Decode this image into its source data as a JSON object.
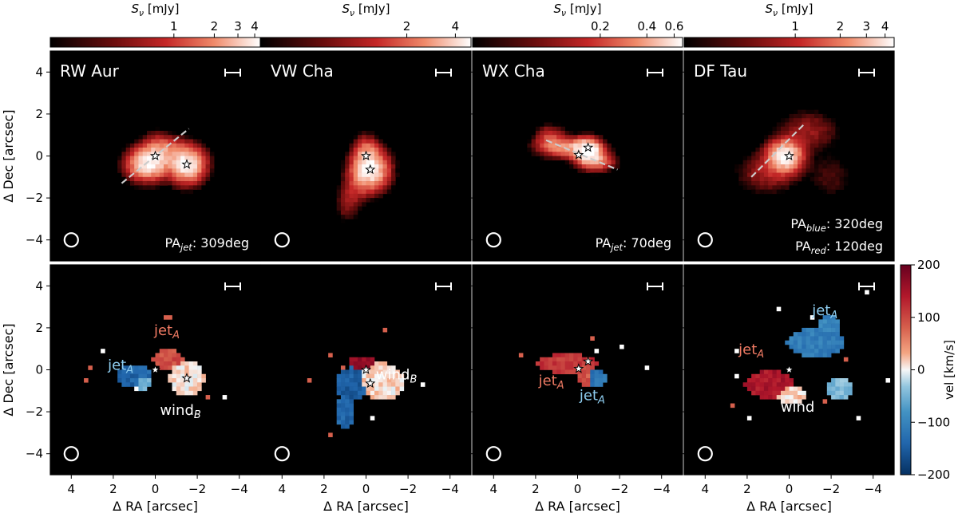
{
  "chart_data": {
    "type": "heatmap",
    "shared_axes": {
      "xlabel": "Δ RA [arcsec]",
      "ylabel": "Δ Dec [arcsec]",
      "xlim": [
        5,
        -5
      ],
      "ylim": [
        -5,
        5
      ],
      "xticks": [
        4,
        2,
        0,
        -2,
        -4
      ],
      "yticks": [
        4,
        2,
        0,
        -2,
        -4
      ],
      "xtick_labels": [
        "4",
        "2",
        "0",
        "−2",
        "−4"
      ],
      "ytick_labels": [
        "4",
        "2",
        "0",
        "−2",
        "−4"
      ]
    },
    "flux_colorbars": [
      {
        "label": "S_ν [mJy]",
        "tick_values": [
          1,
          2,
          3,
          4
        ],
        "tick_labels": [
          "1",
          "2",
          "3",
          "4"
        ],
        "vmin": 0.12,
        "vmax": 4.4
      },
      {
        "label": "S_ν [mJy]",
        "tick_values": [
          2,
          4
        ],
        "tick_labels": [
          "2",
          "4"
        ],
        "vmin": 0.25,
        "vmax": 5.0
      },
      {
        "label": "S_ν [mJy]",
        "tick_values": [
          0.2,
          0.4,
          0.6
        ],
        "tick_labels": [
          "0.2",
          "0.4",
          "0.6"
        ],
        "vmin": 0.03,
        "vmax": 0.68
      },
      {
        "label": "S_ν [mJy]",
        "tick_values": [
          1,
          2,
          3,
          4
        ],
        "tick_labels": [
          "1",
          "2",
          "3",
          "4"
        ],
        "vmin": 0.18,
        "vmax": 4.6
      }
    ],
    "velocity_colorbar": {
      "label": "vel [km/s]",
      "vmin": -200,
      "vmax": 200,
      "tick_values": [
        200,
        100,
        0,
        -100,
        -200
      ],
      "tick_labels": [
        "200",
        "100",
        "0",
        "−100",
        "−200"
      ]
    },
    "panels": [
      {
        "name": "RW Aur",
        "beam_center": [
          4,
          -4
        ],
        "stars": [
          [
            0,
            0
          ],
          [
            -1.5,
            -0.4
          ]
        ],
        "jet_pa_label": "PA",
        "jet_pa_sub": "jet",
        "jet_pa_value": ": 309deg",
        "jet_line": [
          [
            1.6,
            -1.3
          ],
          [
            -1.6,
            1.3
          ]
        ],
        "flux_blobs": [
          {
            "x": 0.4,
            "y": -0.4,
            "sx": 0.55,
            "sy": 0.45,
            "amp": 3.6
          },
          {
            "x": -0.1,
            "y": 0.1,
            "sx": 0.45,
            "sy": 0.5,
            "amp": 2.0
          },
          {
            "x": -1.5,
            "y": -0.4,
            "sx": 0.5,
            "sy": 0.5,
            "amp": 4.4
          },
          {
            "x": -0.8,
            "y": 0.3,
            "sx": 0.4,
            "sy": 0.35,
            "amp": 0.9
          }
        ],
        "vel_regions": [
          {
            "x": 1.0,
            "y": -0.3,
            "rx": 0.75,
            "ry": 0.6,
            "v": -140
          },
          {
            "x": 0.6,
            "y": -0.6,
            "rx": 0.35,
            "ry": 0.35,
            "v": -60
          },
          {
            "x": -0.6,
            "y": 0.5,
            "rx": 0.75,
            "ry": 0.45,
            "v": 95
          },
          {
            "x": -1.5,
            "y": -0.4,
            "rx": 0.85,
            "ry": 0.85,
            "v": 10
          }
        ],
        "vel_labels": [
          {
            "text": "jet",
            "sub": "A",
            "x": 1.65,
            "y": 0.0,
            "color": "#8ecdf0"
          },
          {
            "text": "jet",
            "sub": "A",
            "x": -0.55,
            "y": 1.65,
            "color": "#ef7a63"
          },
          {
            "text": "wind",
            "sub": "B",
            "x": -1.2,
            "y": -2.15,
            "color": "#ffffff"
          }
        ]
      },
      {
        "name": "VW Cha",
        "beam_center": [
          4,
          -4
        ],
        "stars": [
          [
            0,
            0
          ],
          [
            -0.2,
            -0.65
          ]
        ],
        "flux_blobs": [
          {
            "x": -0.2,
            "y": -0.65,
            "sx": 0.55,
            "sy": 0.6,
            "amp": 5.0
          },
          {
            "x": 0.0,
            "y": 0.2,
            "sx": 0.35,
            "sy": 0.5,
            "amp": 1.6
          },
          {
            "x": 0.9,
            "y": -2.3,
            "sx": 0.35,
            "sy": 0.55,
            "amp": 0.8
          },
          {
            "x": 0.5,
            "y": -1.5,
            "sx": 0.4,
            "sy": 0.5,
            "amp": 0.8
          }
        ],
        "vel_regions": [
          {
            "x": 0.2,
            "y": 0.35,
            "rx": 0.65,
            "ry": 0.35,
            "v": 170
          },
          {
            "x": 0.7,
            "y": -0.7,
            "rx": 0.7,
            "ry": 0.8,
            "v": -150
          },
          {
            "x": 1.0,
            "y": -2.0,
            "rx": 0.45,
            "ry": 0.9,
            "v": -140
          },
          {
            "x": -0.75,
            "y": -0.55,
            "rx": 1.05,
            "ry": 0.9,
            "v": 12
          }
        ],
        "vel_labels": [
          {
            "text": "wind",
            "sub": "B",
            "x": -1.45,
            "y": -0.45,
            "color": "#ffffff"
          }
        ]
      },
      {
        "name": "WX Cha",
        "beam_center": [
          4,
          -4
        ],
        "stars": [
          [
            -0.5,
            0.4
          ],
          [
            -0.05,
            0.05
          ]
        ],
        "jet_pa_label": "PA",
        "jet_pa_sub": "jet",
        "jet_pa_value": ": 70deg",
        "jet_line": [
          [
            1.5,
            0.75
          ],
          [
            -1.9,
            -0.65
          ]
        ],
        "flux_blobs": [
          {
            "x": -0.5,
            "y": 0.25,
            "sx": 0.4,
            "sy": 0.35,
            "amp": 0.68
          },
          {
            "x": 0.5,
            "y": 0.4,
            "sx": 0.85,
            "sy": 0.3,
            "amp": 0.35
          },
          {
            "x": -0.9,
            "y": -0.25,
            "sx": 0.55,
            "sy": 0.3,
            "amp": 0.3
          },
          {
            "x": 1.3,
            "y": 0.9,
            "sx": 0.45,
            "sy": 0.35,
            "amp": 0.18
          }
        ],
        "vel_regions": [
          {
            "x": 0.5,
            "y": 0.3,
            "rx": 1.45,
            "ry": 0.45,
            "v": 115
          },
          {
            "x": -0.4,
            "y": -0.2,
            "rx": 0.35,
            "ry": 0.6,
            "v": 90
          },
          {
            "x": -0.9,
            "y": -0.4,
            "rx": 0.5,
            "ry": 0.45,
            "v": -120
          }
        ],
        "vel_labels": [
          {
            "text": "jet",
            "sub": "A",
            "x": 1.25,
            "y": -0.75,
            "color": "#ef7a63"
          },
          {
            "text": "jet",
            "sub": "A",
            "x": -0.7,
            "y": -1.45,
            "color": "#8ecdf0"
          }
        ]
      },
      {
        "name": "DF Tau",
        "beam_center": [
          4,
          -4
        ],
        "stars": [
          [
            0,
            0
          ]
        ],
        "pa_blue_label": "PA",
        "pa_blue_sub": "blue",
        "pa_blue_value": ": 320deg",
        "pa_red_label": "PA",
        "pa_red_sub": "red",
        "pa_red_value": ": 120deg",
        "jet_line": [
          [
            1.8,
            -1.0
          ],
          [
            -0.7,
            1.5
          ]
        ],
        "flux_blobs": [
          {
            "x": 0.2,
            "y": 0.0,
            "sx": 0.5,
            "sy": 0.45,
            "amp": 4.6
          },
          {
            "x": -0.9,
            "y": 1.2,
            "sx": 0.9,
            "sy": 0.6,
            "amp": 0.7
          },
          {
            "x": 1.0,
            "y": -0.8,
            "sx": 0.9,
            "sy": 0.6,
            "amp": 0.8
          },
          {
            "x": -2.0,
            "y": -1.0,
            "sx": 0.7,
            "sy": 0.7,
            "amp": 0.35
          }
        ],
        "vel_regions": [
          {
            "x": -1.3,
            "y": 1.3,
            "rx": 1.4,
            "ry": 0.7,
            "v": -110
          },
          {
            "x": -1.9,
            "y": 2.1,
            "rx": 0.5,
            "ry": 0.5,
            "v": -100
          },
          {
            "x": 0.9,
            "y": -0.7,
            "rx": 1.2,
            "ry": 0.65,
            "v": 145
          },
          {
            "x": -0.1,
            "y": -1.2,
            "rx": 0.8,
            "ry": 0.45,
            "v": 15
          },
          {
            "x": -2.4,
            "y": -0.9,
            "rx": 0.6,
            "ry": 0.5,
            "v": -45
          }
        ],
        "vel_labels": [
          {
            "text": "jet",
            "sub": "A",
            "x": -1.7,
            "y": 2.6,
            "color": "#8ecdf0"
          },
          {
            "text": "jet",
            "sub": "A",
            "x": 1.8,
            "y": 0.75,
            "color": "#ef7a63"
          },
          {
            "text": "wind",
            "sub": "",
            "x": -0.4,
            "y": -2.0,
            "color": "#ffffff"
          }
        ]
      }
    ]
  }
}
